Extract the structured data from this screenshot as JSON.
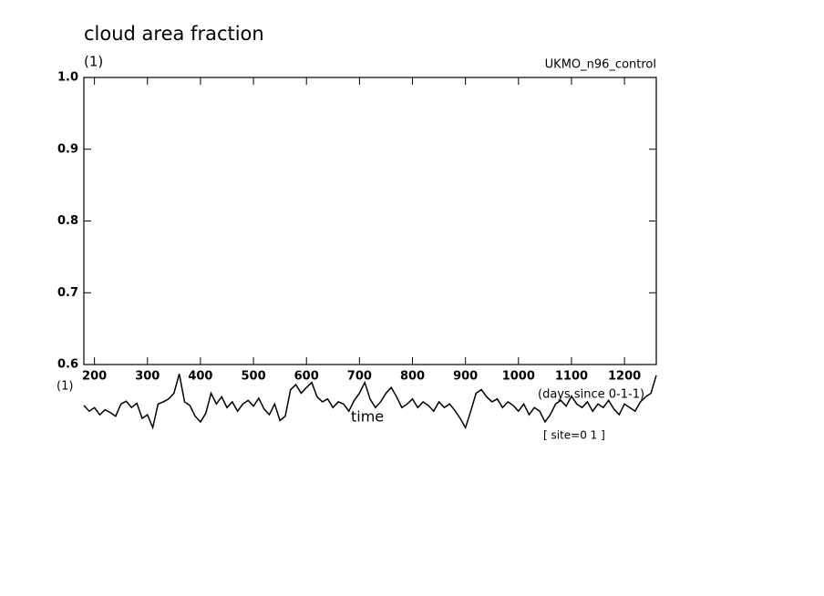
{
  "chart_data": {
    "type": "line",
    "title": "cloud area fraction",
    "units": "(1)",
    "subtitle": "UKMO_n96_control",
    "y_axis_label": "(1)",
    "x_units": "(days since 0-1-1)",
    "x_axis_label": "time",
    "annotation": "[ site=0 1 ]",
    "xlim": [
      180,
      1260
    ],
    "ylim": [
      0.6,
      1.0
    ],
    "xticks": [
      200,
      300,
      400,
      500,
      600,
      700,
      800,
      900,
      1000,
      1100,
      1200
    ],
    "yticks": [
      0.6,
      0.7,
      0.8,
      0.9,
      {
        "value": 1,
        "label": "1.0"
      }
    ],
    "x": [
      180,
      190,
      200,
      210,
      220,
      230,
      240,
      250,
      260,
      270,
      280,
      290,
      300,
      310,
      320,
      330,
      340,
      350,
      360,
      370,
      380,
      390,
      400,
      410,
      420,
      430,
      440,
      450,
      460,
      470,
      480,
      490,
      500,
      510,
      520,
      530,
      540,
      550,
      560,
      570,
      580,
      590,
      600,
      610,
      620,
      630,
      640,
      650,
      660,
      670,
      680,
      690,
      700,
      710,
      720,
      730,
      740,
      750,
      760,
      770,
      780,
      790,
      800,
      810,
      820,
      830,
      840,
      850,
      860,
      870,
      880,
      890,
      900,
      910,
      920,
      930,
      940,
      950,
      960,
      970,
      980,
      990,
      1000,
      1010,
      1020,
      1030,
      1040,
      1050,
      1060,
      1070,
      1080,
      1090,
      1100,
      1110,
      1120,
      1130,
      1140,
      1150,
      1160,
      1170,
      1180,
      1190,
      1200,
      1210,
      1220,
      1230,
      1240,
      1250,
      1260
    ],
    "series": [
      {
        "color": "#000000",
        "values": [
          0.543,
          0.535,
          0.54,
          0.53,
          0.537,
          0.533,
          0.528,
          0.545,
          0.549,
          0.54,
          0.546,
          0.525,
          0.53,
          0.512,
          0.545,
          0.548,
          0.552,
          0.56,
          0.587,
          0.548,
          0.543,
          0.528,
          0.52,
          0.532,
          0.56,
          0.545,
          0.555,
          0.54,
          0.548,
          0.535,
          0.545,
          0.55,
          0.542,
          0.553,
          0.538,
          0.53,
          0.545,
          0.522,
          0.528,
          0.565,
          0.572,
          0.56,
          0.568,
          0.575,
          0.555,
          0.548,
          0.552,
          0.54,
          0.548,
          0.545,
          0.535,
          0.55,
          0.56,
          0.575,
          0.552,
          0.54,
          0.548,
          0.56,
          0.568,
          0.555,
          0.54,
          0.545,
          0.552,
          0.54,
          0.548,
          0.543,
          0.535,
          0.548,
          0.54,
          0.545,
          0.536,
          0.525,
          0.512,
          0.535,
          0.56,
          0.565,
          0.555,
          0.548,
          0.552,
          0.54,
          0.548,
          0.543,
          0.535,
          0.545,
          0.53,
          0.54,
          0.535,
          0.52,
          0.53,
          0.545,
          0.55,
          0.542,
          0.556,
          0.545,
          0.54,
          0.548,
          0.535,
          0.545,
          0.54,
          0.55,
          0.538,
          0.53,
          0.545,
          0.54,
          0.535,
          0.548,
          0.555,
          0.56,
          0.585
        ]
      }
    ]
  }
}
